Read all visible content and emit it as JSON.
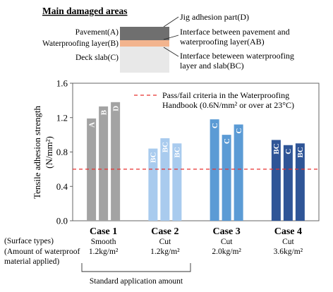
{
  "diagram": {
    "title": "Main damaged areas",
    "left_labels": [
      "Pavement(A)",
      "Waterproofing layer(B)",
      "Deck slab(C)"
    ],
    "right_labels": {
      "d": [
        "Jig adhesion part(D)"
      ],
      "ab": [
        "Interface between pavement and",
        "waterproofing layer(AB)"
      ],
      "bc": [
        "Interface beteween waterproofing",
        "layer and slab(BC)"
      ]
    },
    "colors": {
      "pavement": "#6f6f6f",
      "waterproofing": "#f2b48e",
      "slab": "#e8e8e8"
    }
  },
  "chart_data": {
    "type": "bar",
    "ylabel_line1": "Tensile adhesion strength",
    "ylabel_line2": "(N/mm²)",
    "ylim": [
      0.0,
      1.6
    ],
    "yticks": [
      "0.0",
      "0.4",
      "0.8",
      "1.2",
      "1.6"
    ],
    "reference_line": {
      "value": 0.6,
      "label_line1": "Pass/fail criteria in the Waterproofing",
      "label_line2": "Handbook (0.6N/mm² or over at 23°C)",
      "color": "#e8312f"
    },
    "groups": [
      {
        "name": "Case 1",
        "surface": "Smooth",
        "amount": "1.2kg/m²",
        "bars": [
          {
            "value": 1.19,
            "label": "A"
          },
          {
            "value": 1.33,
            "label": "B"
          },
          {
            "value": 1.38,
            "label": "D"
          }
        ],
        "color": "#a3a3a3"
      },
      {
        "name": "Case 2",
        "surface": "Cut",
        "amount": "1.2kg/m²",
        "bars": [
          {
            "value": 0.84,
            "label": "BC"
          },
          {
            "value": 0.96,
            "label": "BC"
          },
          {
            "value": 0.9,
            "label": "BC"
          }
        ],
        "color": "#a9cbee"
      },
      {
        "name": "Case 3",
        "surface": "Cut",
        "amount": "2.0kg/m²",
        "bars": [
          {
            "value": 1.18,
            "label": "C"
          },
          {
            "value": 1.0,
            "label": "C"
          },
          {
            "value": 1.12,
            "label": "C"
          }
        ],
        "color": "#5b9bd5"
      },
      {
        "name": "Case 4",
        "surface": "Cut",
        "amount": "3.6kg/m²",
        "bars": [
          {
            "value": 0.94,
            "label": "BC"
          },
          {
            "value": 0.88,
            "label": "C"
          },
          {
            "value": 0.9,
            "label": "BC"
          }
        ],
        "color": "#2f5597"
      }
    ],
    "row_labels": {
      "surface": "(Surface types)",
      "amount_line1": "(Amount of waterproof",
      "amount_line2": "material applied)"
    },
    "bracket_label": "Standard application amount",
    "grid": false
  }
}
